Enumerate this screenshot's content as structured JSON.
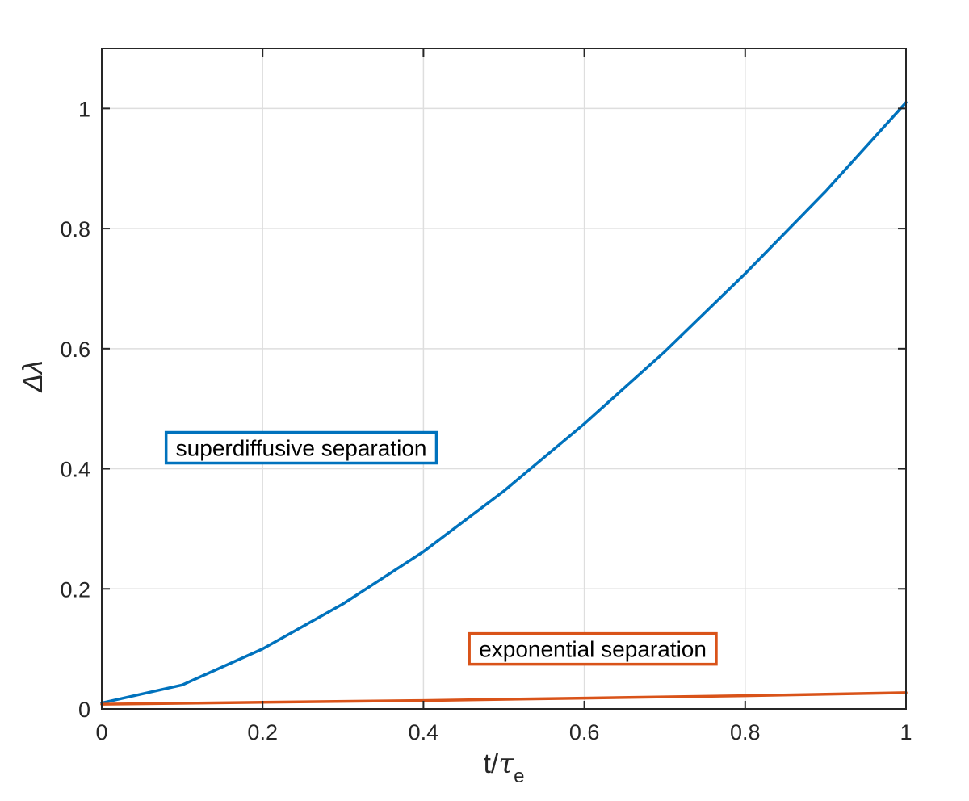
{
  "chart_data": {
    "type": "line",
    "title": "",
    "xlabel": {
      "main": "t/",
      "greek": "τ",
      "sub": "e"
    },
    "ylabel": "Δλ",
    "xlim": [
      0,
      1
    ],
    "ylim": [
      0,
      1.1
    ],
    "xticks": [
      0,
      0.2,
      0.4,
      0.6,
      0.8,
      1
    ],
    "xtick_labels": [
      "0",
      "0.2",
      "0.4",
      "0.6",
      "0.8",
      "1"
    ],
    "yticks": [
      0,
      0.2,
      0.4,
      0.6,
      0.8,
      1
    ],
    "ytick_labels": [
      "0",
      "0.2",
      "0.4",
      "0.6",
      "0.8",
      "1"
    ],
    "grid": true,
    "series": [
      {
        "color": "#0072BD",
        "x": [
          0,
          0.1,
          0.2,
          0.3,
          0.4,
          0.5,
          0.6,
          0.7,
          0.8,
          0.9,
          1.0
        ],
        "y": [
          0.01,
          0.04,
          0.1,
          0.175,
          0.262,
          0.363,
          0.475,
          0.595,
          0.725,
          0.862,
          1.01
        ]
      },
      {
        "color": "#D95319",
        "x": [
          0,
          0.2,
          0.4,
          0.6,
          0.8,
          1.0
        ],
        "y": [
          0.008,
          0.011,
          0.014,
          0.018,
          0.022,
          0.027
        ]
      }
    ],
    "annotations": [
      {
        "text": "superdiffusive separation",
        "color": "#0072BD",
        "x": 0.08,
        "y": 0.435
      },
      {
        "text": "exponential separation",
        "color": "#D95319",
        "x": 0.457,
        "y": 0.1
      }
    ]
  }
}
